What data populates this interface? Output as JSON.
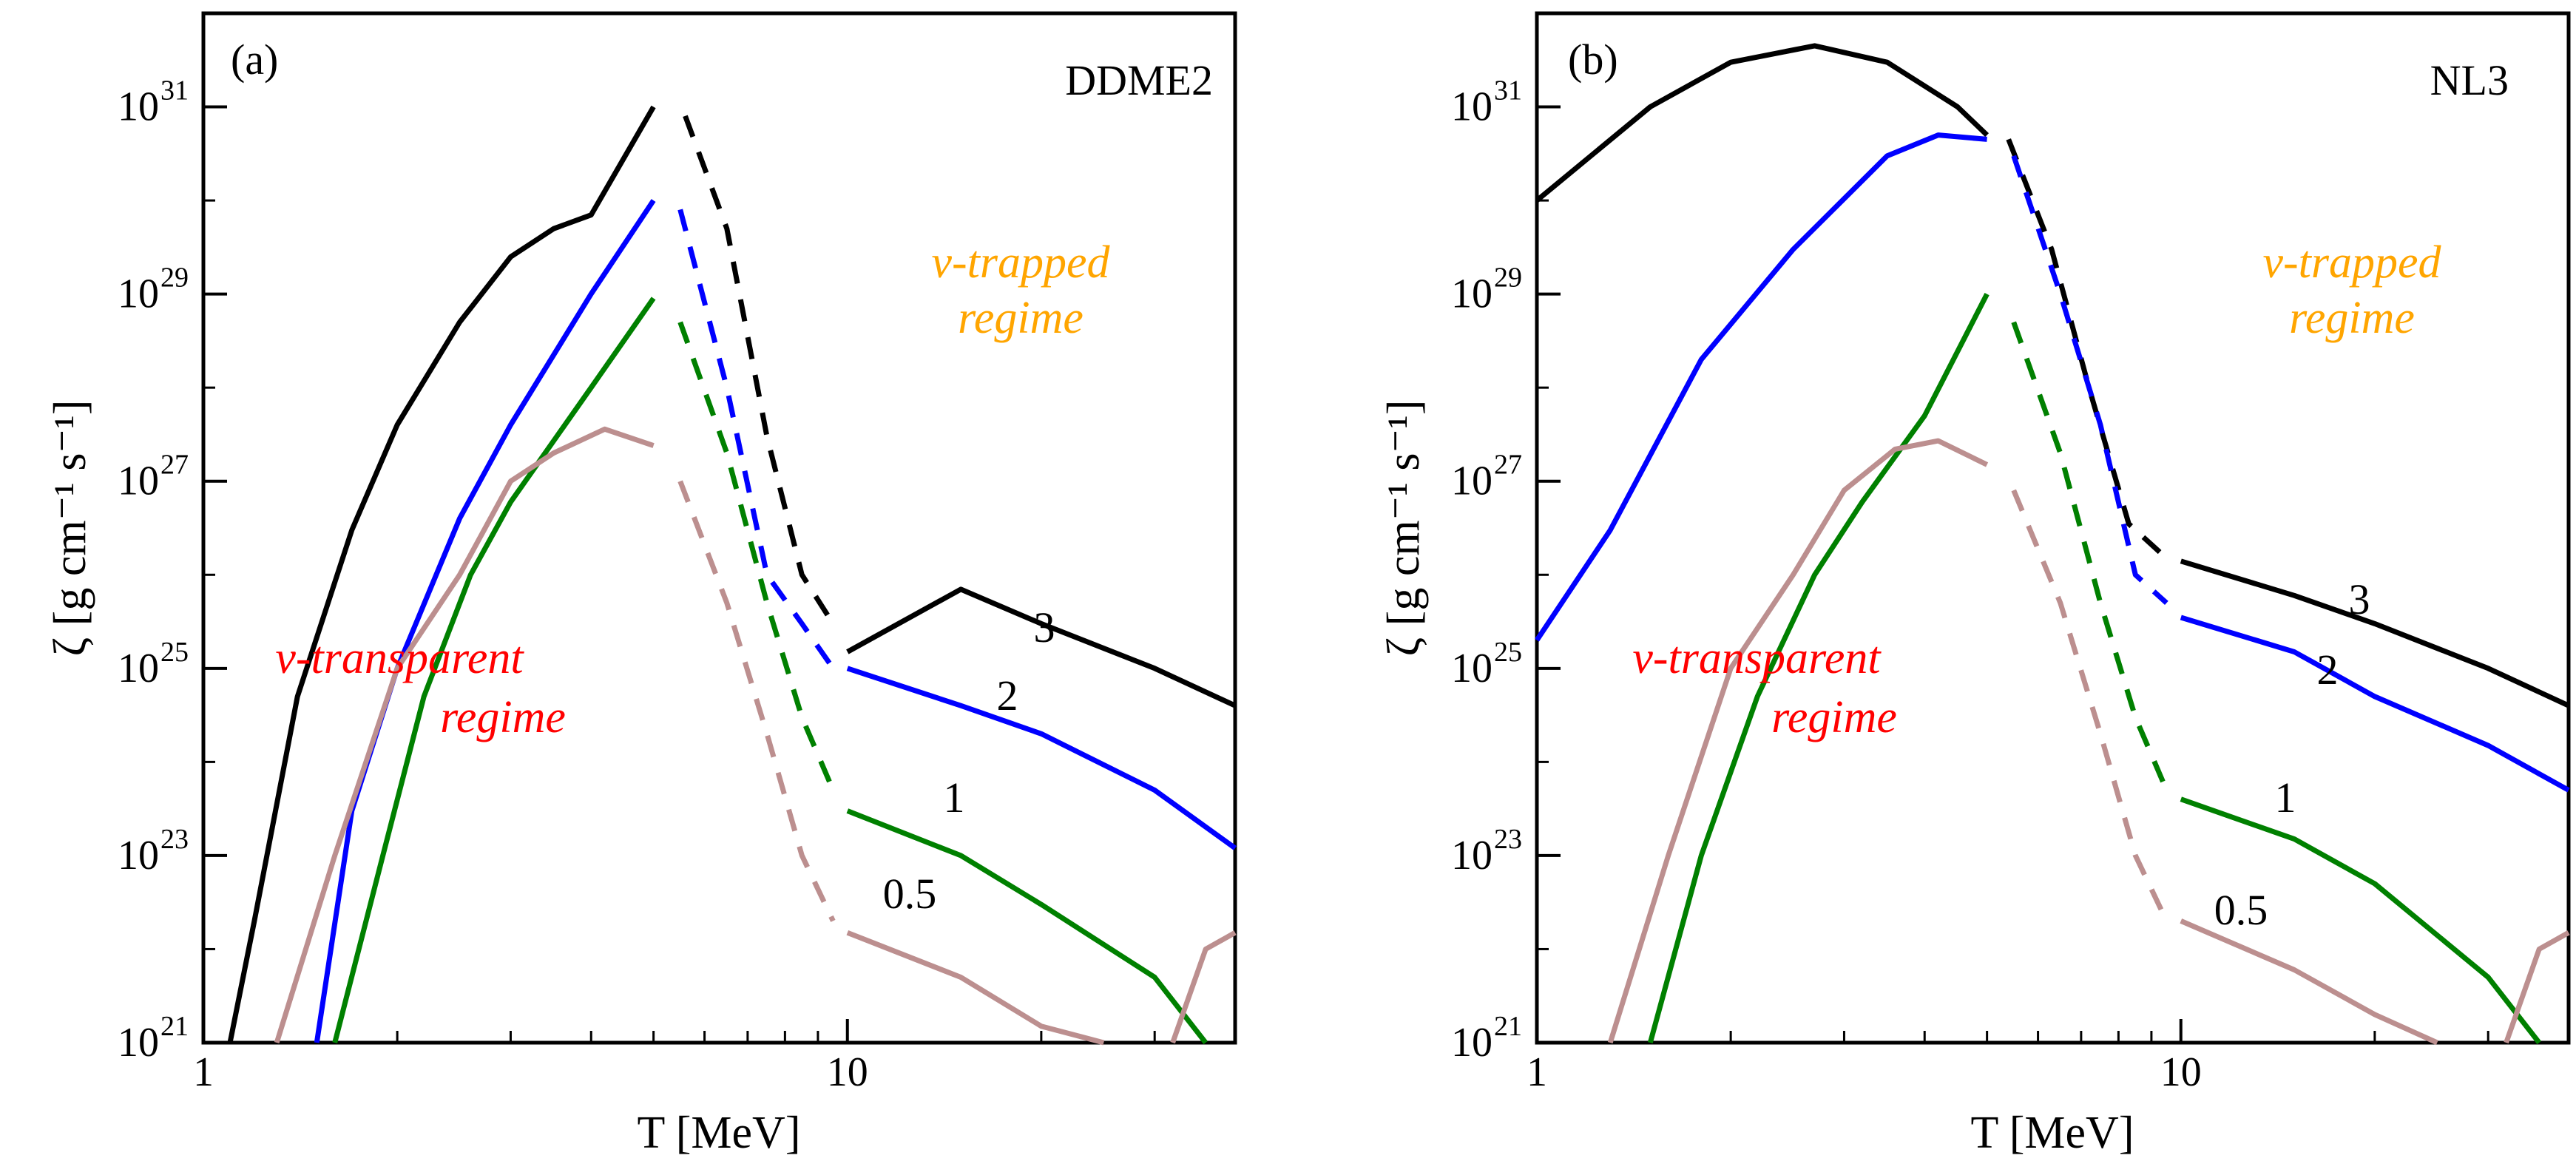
{
  "chart_data": [
    {
      "type": "line",
      "panel_label": "(a)",
      "model": "DDME2",
      "xlabel": "T [MeV]",
      "ylabel": "ζ [g cm⁻¹ s⁻¹]",
      "xscale": "log",
      "yscale": "log",
      "xlim": [
        1,
        40
      ],
      "ylim": [
        1e+21,
        1e+32
      ],
      "x_ticks": [
        {
          "value": 1,
          "label": "1"
        },
        {
          "value": 10,
          "label": "10"
        }
      ],
      "y_ticks": [
        {
          "exp": 21
        },
        {
          "exp": 23
        },
        {
          "exp": 25
        },
        {
          "exp": 27
        },
        {
          "exp": 29
        },
        {
          "exp": 31
        }
      ],
      "tick_base": "10",
      "annotations": {
        "transparent_line1": "ν-transparent",
        "transparent_line2": "regime",
        "trapped_line1": "ν-trapped",
        "trapped_line2": "regime"
      },
      "series": [
        {
          "name": "3",
          "label": "3",
          "color": "#000000",
          "solid_low": [
            [
              1.1,
              1e+21
            ],
            [
              1.2,
              2e+22
            ],
            [
              1.4,
              5e+24
            ],
            [
              1.7,
              3e+26
            ],
            [
              2,
              4e+27
            ],
            [
              2.5,
              5e+28
            ],
            [
              3,
              2.5e+29
            ],
            [
              3.5,
              5e+29
            ],
            [
              4,
              7e+29
            ],
            [
              5,
              1e+31
            ]
          ],
          "dashed": [
            [
              5.6,
              8e+30
            ],
            [
              6.5,
              5e+29
            ],
            [
              7.5,
              3e+27
            ],
            [
              8.5,
              1e+26
            ],
            [
              9.5,
              3e+25
            ]
          ],
          "solid_high": [
            [
              10,
              1.5e+25
            ],
            [
              15,
              7e+25
            ],
            [
              20,
              3e+25
            ],
            [
              30,
              1e+25
            ],
            [
              40,
              4e+24
            ]
          ]
        },
        {
          "name": "2",
          "label": "2",
          "color": "#0000ff",
          "solid_low": [
            [
              1.5,
              1e+21
            ],
            [
              1.7,
              3e+23
            ],
            [
              2,
              1e+25
            ],
            [
              2.5,
              4e+26
            ],
            [
              3,
              4e+27
            ],
            [
              4,
              1e+29
            ],
            [
              5,
              1e+30
            ]
          ],
          "dashed": [
            [
              5.5,
              8e+29
            ],
            [
              6.5,
              1e+28
            ],
            [
              7.5,
              1e+26
            ],
            [
              8.5,
              3e+25
            ],
            [
              9.5,
              1e+25
            ]
          ],
          "solid_high": [
            [
              10,
              1e+25
            ],
            [
              15,
              4e+24
            ],
            [
              20,
              2e+24
            ],
            [
              30,
              5e+23
            ],
            [
              40,
              1.2e+23
            ]
          ]
        },
        {
          "name": "1",
          "label": "1",
          "color": "#008000",
          "solid_low": [
            [
              1.6,
              1e+21
            ],
            [
              1.9,
              1e+23
            ],
            [
              2.2,
              5e+24
            ],
            [
              2.6,
              1e+26
            ],
            [
              3,
              6e+26
            ],
            [
              4,
              1e+28
            ],
            [
              5,
              9e+28
            ]
          ],
          "dashed": [
            [
              5.5,
              5e+28
            ],
            [
              6.5,
              2e+27
            ],
            [
              7.5,
              5e+25
            ],
            [
              8.5,
              3e+24
            ],
            [
              9.5,
              5e+23
            ]
          ],
          "solid_high": [
            [
              10,
              3e+23
            ],
            [
              15,
              1e+23
            ],
            [
              20,
              3e+22
            ],
            [
              30,
              5e+21
            ],
            [
              36,
              1e+21
            ]
          ]
        },
        {
          "name": "0.5",
          "label": "0.5",
          "color": "#bc8f8f",
          "solid_low": [
            [
              1.3,
              1e+21
            ],
            [
              1.6,
              1e+23
            ],
            [
              2,
              1e+25
            ],
            [
              2.5,
              1e+26
            ],
            [
              3,
              1e+27
            ],
            [
              3.5,
              2e+27
            ],
            [
              4.2,
              3.6e+27
            ],
            [
              5,
              2.4e+27
            ]
          ],
          "dashed": [
            [
              5.5,
              1e+27
            ],
            [
              6.5,
              5e+25
            ],
            [
              7.5,
              2e+24
            ],
            [
              8.5,
              1e+23
            ],
            [
              9.5,
              2e+22
            ]
          ],
          "solid_high": [
            [
              10,
              1.5e+22
            ],
            [
              15,
              5e+21
            ],
            [
              20,
              1.5e+21
            ],
            [
              25,
              1e+21
            ]
          ],
          "solid_tail": [
            [
              32,
              1e+21
            ],
            [
              36,
              1e+22
            ],
            [
              40,
              1.5e+22
            ]
          ]
        }
      ]
    },
    {
      "type": "line",
      "panel_label": "(b)",
      "model": "NL3",
      "xlabel": "T [MeV]",
      "ylabel": "ζ [g cm⁻¹ s⁻¹]",
      "xscale": "log",
      "yscale": "log",
      "xlim": [
        1,
        40
      ],
      "ylim": [
        1e+21,
        1e+32
      ],
      "x_ticks": [
        {
          "value": 1,
          "label": "1"
        },
        {
          "value": 10,
          "label": "10"
        }
      ],
      "y_ticks": [
        {
          "exp": 21
        },
        {
          "exp": 23
        },
        {
          "exp": 25
        },
        {
          "exp": 27
        },
        {
          "exp": 29
        },
        {
          "exp": 31
        }
      ],
      "tick_base": "10",
      "annotations": {
        "transparent_line1": "ν-transparent",
        "transparent_line2": "regime",
        "trapped_line1": "ν-trapped",
        "trapped_line2": "regime"
      },
      "series": [
        {
          "name": "3",
          "label": "3",
          "color": "#000000",
          "solid_low": [
            [
              1,
              1e+30
            ],
            [
              1.5,
              1e+31
            ],
            [
              2,
              3e+31
            ],
            [
              2.7,
              4.5e+31
            ],
            [
              3.5,
              3e+31
            ],
            [
              4.5,
              1e+31
            ],
            [
              5,
              5e+30
            ]
          ],
          "dashed": [
            [
              5.4,
              4.5e+30
            ],
            [
              6.3,
              3e+29
            ],
            [
              7.2,
              1e+28
            ],
            [
              8.3,
              3.5e+26
            ],
            [
              9.5,
              1.5e+26
            ]
          ],
          "solid_high": [
            [
              10,
              1.4e+26
            ],
            [
              15,
              6e+25
            ],
            [
              20,
              3e+25
            ],
            [
              30,
              1e+25
            ],
            [
              40,
              4e+24
            ]
          ]
        },
        {
          "name": "2",
          "label": "2",
          "color": "#0000ff",
          "solid_low": [
            [
              1,
              2e+25
            ],
            [
              1.3,
              3e+26
            ],
            [
              1.8,
              2e+28
            ],
            [
              2.5,
              3e+29
            ],
            [
              3.5,
              3e+30
            ],
            [
              4.2,
              5e+30
            ],
            [
              5,
              4.5e+30
            ]
          ],
          "dashed": [
            [
              5.5,
              3e+30
            ],
            [
              6.5,
              1e+29
            ],
            [
              7.5,
              4e+27
            ],
            [
              8.5,
              1e+26
            ],
            [
              9.5,
              5e+25
            ]
          ],
          "solid_high": [
            [
              10,
              3.5e+25
            ],
            [
              15,
              1.5e+25
            ],
            [
              20,
              5e+24
            ],
            [
              30,
              1.5e+24
            ],
            [
              40,
              5e+23
            ]
          ]
        },
        {
          "name": "1",
          "label": "1",
          "color": "#008000",
          "solid_low": [
            [
              1.5,
              1e+21
            ],
            [
              1.8,
              1e+23
            ],
            [
              2.2,
              5e+24
            ],
            [
              2.7,
              1e+26
            ],
            [
              3.2,
              6e+26
            ],
            [
              4,
              5e+27
            ],
            [
              5,
              1e+29
            ]
          ],
          "dashed": [
            [
              5.5,
              5e+28
            ],
            [
              6.5,
              2e+27
            ],
            [
              7.5,
              5e+25
            ],
            [
              8.5,
              3e+24
            ],
            [
              9.5,
              5e+23
            ]
          ],
          "solid_high": [
            [
              10,
              4e+23
            ],
            [
              15,
              1.5e+23
            ],
            [
              20,
              5e+22
            ],
            [
              30,
              5e+21
            ],
            [
              36,
              1e+21
            ]
          ]
        },
        {
          "name": "0.5",
          "label": "0.5",
          "color": "#bc8f8f",
          "solid_low": [
            [
              1.3,
              1e+21
            ],
            [
              1.6,
              1e+23
            ],
            [
              2,
              1e+25
            ],
            [
              2.5,
              1e+26
            ],
            [
              3,
              8e+26
            ],
            [
              3.6,
              2.2e+27
            ],
            [
              4.2,
              2.7e+27
            ],
            [
              5,
              1.5e+27
            ]
          ],
          "dashed": [
            [
              5.5,
              8e+26
            ],
            [
              6.5,
              5e+25
            ],
            [
              7.5,
              2e+24
            ],
            [
              8.5,
              1e+23
            ],
            [
              9.5,
              2e+22
            ]
          ],
          "solid_high": [
            [
              10,
              2e+22
            ],
            [
              15,
              6e+21
            ],
            [
              20,
              2e+21
            ],
            [
              25,
              1e+21
            ]
          ],
          "solid_tail": [
            [
              32,
              1e+21
            ],
            [
              36,
              1e+22
            ],
            [
              40,
              1.5e+22
            ]
          ]
        }
      ]
    }
  ]
}
